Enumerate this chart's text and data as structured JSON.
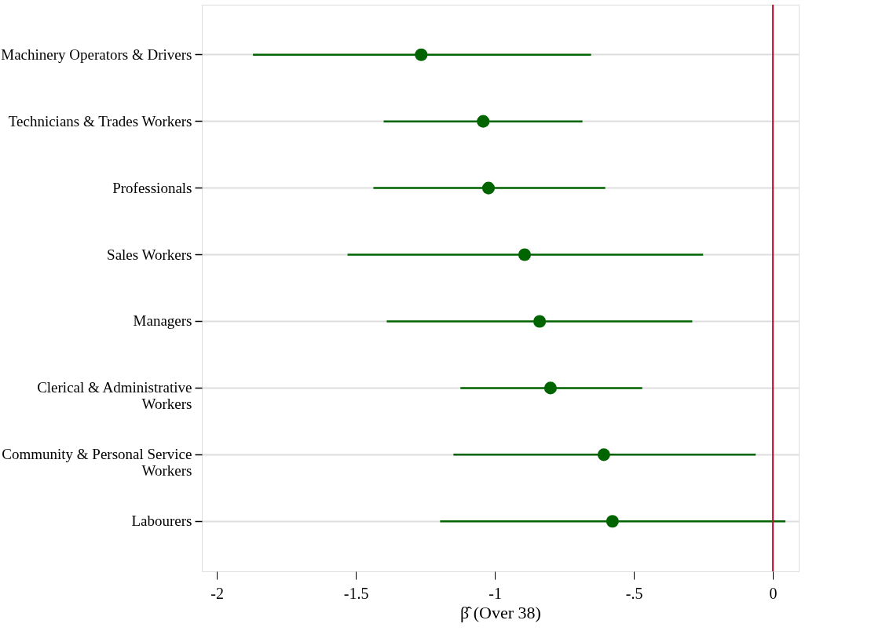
{
  "chart_data": {
    "type": "scatter",
    "xlabel": "β̂ (Over 38)",
    "categories": [
      "Machinery Operators & Drivers",
      "Technicians & Trades Workers",
      "Professionals",
      "Sales Workers",
      "Managers",
      "Clerical & Administrative Workers",
      "Community & Personal Service Workers",
      "Labourers"
    ],
    "orientation": "horizontal",
    "color": "#006400",
    "values": [
      -1.265,
      -1.042,
      -1.023,
      -0.893,
      -0.839,
      -0.8,
      -0.608,
      -0.577
    ],
    "errors": [
      [
        -1.87,
        -0.654
      ],
      [
        -1.4,
        -0.685
      ],
      [
        -1.437,
        -0.603
      ],
      [
        -1.53,
        -0.251
      ],
      [
        -1.389,
        -0.29
      ],
      [
        -1.124,
        -0.47
      ],
      [
        -1.149,
        -0.062
      ],
      [
        -1.197,
        0.045
      ]
    ],
    "xlim": [
      -2.054,
      0.093
    ],
    "xticks": [
      -2,
      {
        "value": -1.5,
        "label": "-1.5"
      },
      -1,
      {
        "value": -0.5,
        "label": "-.5"
      },
      0
    ],
    "ref_lines": [
      {
        "axis": "x",
        "value": 0,
        "color": "#c8102e"
      }
    ],
    "grid": "y",
    "marker": "circle"
  }
}
